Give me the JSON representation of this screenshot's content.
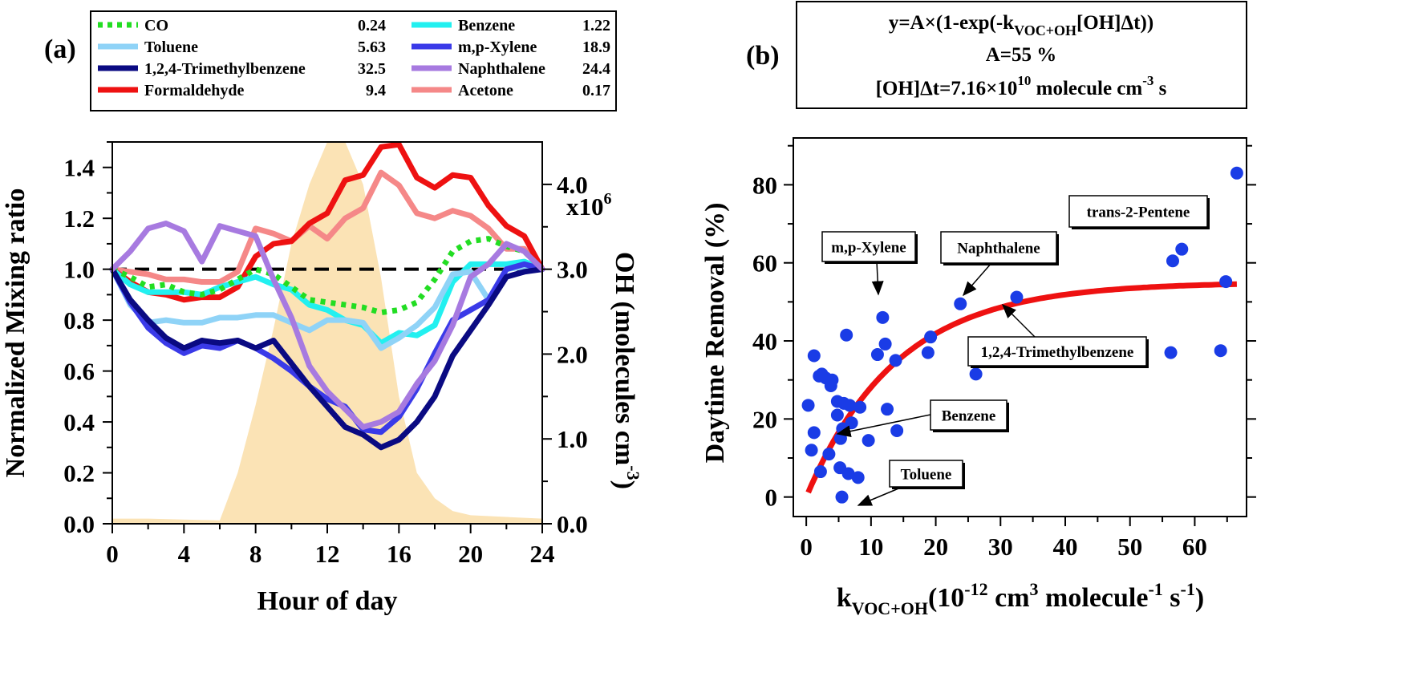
{
  "panel_a_label": "(a)",
  "panel_b_label": "(b)",
  "chart_data": [
    {
      "type": "line",
      "panel": "(a)",
      "xlabel": "Hour of day",
      "ylabel": "Normalized Mixing ratio",
      "y2label": "OH (molecules cm",
      "y2label_sup": "-3",
      "y2label_close": ")",
      "y2_multiplier": "x10",
      "y2_multiplier_exp": "6",
      "xlim": [
        0,
        24
      ],
      "ylim": [
        0,
        1.5
      ],
      "y2lim": [
        0,
        4.5
      ],
      "x_ticks": [
        "0",
        "4",
        "8",
        "12",
        "16",
        "20",
        "24"
      ],
      "y_ticks": [
        "0.0",
        "0.2",
        "0.4",
        "0.6",
        "0.8",
        "1.0",
        "1.2",
        "1.4"
      ],
      "y2_ticks": [
        "0.0",
        "1.0",
        "2.0",
        "3.0",
        "4.0"
      ],
      "reference_line": 1.0,
      "oh_profile": {
        "color": "#fbe3b5",
        "x": [
          0,
          2,
          4,
          6,
          7,
          8,
          9,
          10,
          11,
          12,
          13,
          14,
          15,
          16,
          17,
          18,
          19,
          20,
          22,
          24
        ],
        "y": [
          0.06,
          0.06,
          0.05,
          0.04,
          0.6,
          1.4,
          2.3,
          3.3,
          4.0,
          4.5,
          4.5,
          4.0,
          2.9,
          1.5,
          0.6,
          0.3,
          0.15,
          0.1,
          0.08,
          0.06
        ]
      },
      "legend": [
        {
          "name": "CO",
          "value": "0.24",
          "color": "#22dd22",
          "dash": true
        },
        {
          "name": "Toluene",
          "value": "5.63",
          "color": "#8fd3f7"
        },
        {
          "name": "1,2,4-Trimethylbenzene",
          "value": "32.5",
          "color": "#0a0a82"
        },
        {
          "name": "Formaldehyde",
          "value": "9.4",
          "color": "#ee1111"
        },
        {
          "name": "Benzene",
          "value": "1.22",
          "color": "#22f0f0"
        },
        {
          "name": "m,p-Xylene",
          "value": "18.9",
          "color": "#3a3ae8"
        },
        {
          "name": "Naphthalene",
          "value": "24.4",
          "color": "#a77ae0"
        },
        {
          "name": "Acetone",
          "value": "0.17",
          "color": "#f58888"
        }
      ],
      "series": [
        {
          "name": "Acetone",
          "color": "#f58888",
          "x": [
            0,
            1,
            2,
            3,
            4,
            5,
            6,
            7,
            8,
            9,
            10,
            11,
            12,
            13,
            14,
            15,
            16,
            17,
            18,
            19,
            20,
            21,
            22,
            23,
            24
          ],
          "y": [
            1.0,
            0.99,
            0.98,
            0.96,
            0.96,
            0.95,
            0.95,
            0.99,
            1.16,
            1.14,
            1.11,
            1.17,
            1.12,
            1.2,
            1.24,
            1.38,
            1.33,
            1.22,
            1.2,
            1.23,
            1.21,
            1.16,
            1.08,
            1.08,
            1.0
          ]
        },
        {
          "name": "Formaldehyde",
          "color": "#ee1111",
          "x": [
            0,
            1,
            2,
            3,
            4,
            5,
            6,
            7,
            8,
            9,
            10,
            11,
            12,
            13,
            14,
            15,
            16,
            17,
            18,
            19,
            20,
            21,
            22,
            23,
            24
          ],
          "y": [
            1.0,
            0.95,
            0.91,
            0.9,
            0.88,
            0.89,
            0.89,
            0.93,
            1.05,
            1.1,
            1.11,
            1.18,
            1.22,
            1.35,
            1.37,
            1.48,
            1.49,
            1.36,
            1.32,
            1.37,
            1.36,
            1.25,
            1.17,
            1.13,
            1.0
          ]
        },
        {
          "name": "Benzene",
          "color": "#22f0f0",
          "x": [
            0,
            1,
            2,
            3,
            4,
            5,
            6,
            7,
            8,
            9,
            10,
            11,
            12,
            13,
            14,
            15,
            16,
            17,
            18,
            19,
            20,
            21,
            22,
            23,
            24
          ],
          "y": [
            1.0,
            0.94,
            0.91,
            0.91,
            0.91,
            0.9,
            0.93,
            0.95,
            0.97,
            0.94,
            0.92,
            0.86,
            0.84,
            0.8,
            0.78,
            0.71,
            0.75,
            0.74,
            0.78,
            0.95,
            1.02,
            1.02,
            1.02,
            1.03,
            1.0
          ]
        },
        {
          "name": "Toluene",
          "color": "#8fd3f7",
          "x": [
            0,
            1,
            2,
            3,
            4,
            5,
            6,
            7,
            8,
            9,
            10,
            11,
            12,
            13,
            14,
            15,
            16,
            17,
            18,
            19,
            20,
            21,
            22,
            23,
            24
          ],
          "y": [
            1.0,
            0.86,
            0.79,
            0.8,
            0.79,
            0.79,
            0.81,
            0.81,
            0.82,
            0.82,
            0.79,
            0.76,
            0.8,
            0.8,
            0.79,
            0.69,
            0.73,
            0.78,
            0.85,
            0.98,
            0.99,
            0.88,
            1.0,
            1.01,
            1.0
          ]
        },
        {
          "name": "CO",
          "color": "#22dd22",
          "dash": true,
          "x": [
            0,
            1,
            2,
            3,
            4,
            5,
            6,
            7,
            8,
            9,
            10,
            11,
            12,
            13,
            14,
            15,
            16,
            17,
            18,
            19,
            20,
            21,
            22,
            23,
            24
          ],
          "y": [
            1.0,
            0.97,
            0.93,
            0.94,
            0.91,
            0.9,
            0.92,
            0.96,
            1.0,
            0.98,
            0.93,
            0.88,
            0.87,
            0.86,
            0.85,
            0.83,
            0.84,
            0.87,
            0.96,
            1.07,
            1.11,
            1.12,
            1.09,
            1.07,
            1.0
          ]
        },
        {
          "name": "m,p-Xylene",
          "color": "#3a3ae8",
          "x": [
            0,
            1,
            2,
            3,
            4,
            5,
            6,
            7,
            8,
            9,
            10,
            11,
            12,
            13,
            14,
            15,
            16,
            17,
            18,
            19,
            20,
            21,
            22,
            23,
            24
          ],
          "y": [
            1.0,
            0.87,
            0.77,
            0.71,
            0.67,
            0.7,
            0.69,
            0.72,
            0.69,
            0.65,
            0.6,
            0.54,
            0.49,
            0.46,
            0.37,
            0.36,
            0.42,
            0.53,
            0.67,
            0.8,
            0.84,
            0.88,
            1.0,
            1.02,
            1.0
          ]
        },
        {
          "name": "1,2,4-Trimethylbenzene",
          "color": "#0a0a82",
          "x": [
            0,
            1,
            2,
            3,
            4,
            5,
            6,
            7,
            8,
            9,
            10,
            11,
            12,
            13,
            14,
            15,
            16,
            17,
            18,
            19,
            20,
            21,
            22,
            23,
            24
          ],
          "y": [
            1.0,
            0.88,
            0.8,
            0.73,
            0.69,
            0.72,
            0.71,
            0.72,
            0.69,
            0.72,
            0.63,
            0.54,
            0.46,
            0.38,
            0.35,
            0.3,
            0.33,
            0.4,
            0.5,
            0.66,
            0.76,
            0.86,
            0.97,
            0.99,
            1.0
          ]
        },
        {
          "name": "Naphthalene",
          "color": "#a77ae0",
          "x": [
            0,
            1,
            2,
            3,
            4,
            5,
            6,
            7,
            8,
            9,
            10,
            11,
            12,
            13,
            14,
            15,
            16,
            17,
            18,
            19,
            20,
            21,
            22,
            23,
            24
          ],
          "y": [
            1.0,
            1.07,
            1.16,
            1.18,
            1.15,
            1.03,
            1.17,
            1.15,
            1.13,
            0.96,
            0.81,
            0.62,
            0.52,
            0.45,
            0.38,
            0.4,
            0.44,
            0.55,
            0.64,
            0.78,
            0.97,
            1.02,
            1.1,
            1.07,
            1.0
          ]
        }
      ]
    },
    {
      "type": "scatter",
      "panel": "(b)",
      "xlabel": "k",
      "xlabel_sub": "VOC+OH",
      "xlabel_units": [
        "(10",
        "-12",
        " cm",
        "3",
        " molecule",
        "-1",
        " s",
        "-1",
        ")"
      ],
      "ylabel": "Daytime Removal (%)",
      "xlim": [
        -2,
        68
      ],
      "ylim": [
        -5,
        92
      ],
      "x_ticks": [
        "0",
        "10",
        "20",
        "30",
        "40",
        "50",
        "60"
      ],
      "y_ticks": [
        "0",
        "20",
        "40",
        "60",
        "80"
      ],
      "equation": {
        "line1_pre": "y=A×(1-exp(-k",
        "line1_sub": "VOC+OH",
        "line1_post": "[OH]Δt))",
        "line2": "A=55 %",
        "line3_pre": "[OH]Δt=7.16×10",
        "line3_exp1": "10",
        "line3_mid": " molecule cm",
        "line3_exp2": "-3",
        "line3_post": " s"
      },
      "fit": {
        "A": 55,
        "OHdt": 71600000000.0,
        "x_range": [
          0.3,
          66.5
        ],
        "color": "#ee1111"
      },
      "marker_color": "#1a3ce6",
      "points": [
        {
          "x": 0.3,
          "y": 23.5
        },
        {
          "x": 0.8,
          "y": 12
        },
        {
          "x": 1.2,
          "y": 16.5
        },
        {
          "x": 1.2,
          "y": 36.2
        },
        {
          "x": 2.0,
          "y": 31
        },
        {
          "x": 2.2,
          "y": 6.5
        },
        {
          "x": 2.4,
          "y": 31.5
        },
        {
          "x": 3.0,
          "y": 30.5
        },
        {
          "x": 3.5,
          "y": 11
        },
        {
          "x": 3.8,
          "y": 28.5
        },
        {
          "x": 4.0,
          "y": 30
        },
        {
          "x": 4.8,
          "y": 21
        },
        {
          "x": 4.8,
          "y": 24.5
        },
        {
          "x": 5.2,
          "y": 7.5
        },
        {
          "x": 5.3,
          "y": 15
        },
        {
          "x": 5.5,
          "y": 0
        },
        {
          "x": 5.6,
          "y": 17.5
        },
        {
          "x": 5.8,
          "y": 24
        },
        {
          "x": 6.2,
          "y": 41.5
        },
        {
          "x": 6.5,
          "y": 6
        },
        {
          "x": 6.7,
          "y": 23.5
        },
        {
          "x": 7.0,
          "y": 19
        },
        {
          "x": 8.0,
          "y": 5
        },
        {
          "x": 8.3,
          "y": 23
        },
        {
          "x": 9.6,
          "y": 14.5
        },
        {
          "x": 11.0,
          "y": 36.5
        },
        {
          "x": 11.8,
          "y": 46
        },
        {
          "x": 12.2,
          "y": 39.2
        },
        {
          "x": 12.5,
          "y": 22.5
        },
        {
          "x": 13.8,
          "y": 35
        },
        {
          "x": 14.0,
          "y": 17
        },
        {
          "x": 18.8,
          "y": 37
        },
        {
          "x": 19.2,
          "y": 41
        },
        {
          "x": 23.8,
          "y": 49.5
        },
        {
          "x": 26.2,
          "y": 31.5
        },
        {
          "x": 32.5,
          "y": 51.2
        },
        {
          "x": 56.3,
          "y": 37
        },
        {
          "x": 56.6,
          "y": 60.5
        },
        {
          "x": 58.0,
          "y": 63.5
        },
        {
          "x": 64.0,
          "y": 37.5
        },
        {
          "x": 64.8,
          "y": 55.2
        },
        {
          "x": 66.5,
          "y": 83
        }
      ],
      "annotations": [
        {
          "label": "trans-2-Pentene"
        },
        {
          "label": "m,p-Xylene"
        },
        {
          "label": "Naphthalene"
        },
        {
          "label": "1,2,4-Trimethylbenzene"
        },
        {
          "label": "Benzene"
        },
        {
          "label": "Toluene"
        }
      ]
    }
  ]
}
